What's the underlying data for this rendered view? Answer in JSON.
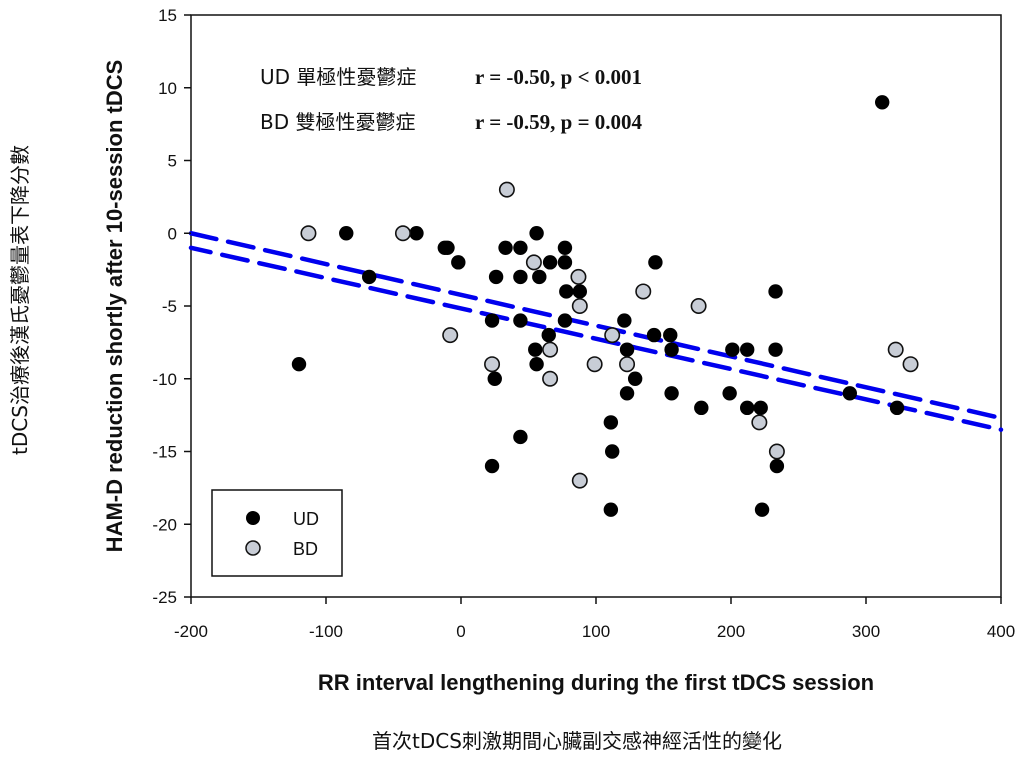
{
  "chart_data": {
    "type": "scatter",
    "title": "",
    "xlabel": "RR interval lengthening during the first tDCS session",
    "xlabel_zh": "首次tDCS刺激期間心臟副交感神經活性的變化",
    "ylabel": "HAM-D reduction shortly after 10-session tDCS",
    "ylabel_zh": "tDCS治療後漢氏憂鬱量表下降分數",
    "xlim": [
      -200,
      400
    ],
    "ylim": [
      -25,
      15
    ],
    "xticks": [
      -200,
      -100,
      0,
      100,
      200,
      300,
      400
    ],
    "yticks": [
      15,
      10,
      5,
      0,
      -5,
      -10,
      -15,
      -20,
      -25
    ],
    "grid": false,
    "legend": {
      "placement": "bottom-left",
      "entries": [
        {
          "name": "UD",
          "color": "#000000"
        },
        {
          "name": "BD",
          "color": "#c8cdd6"
        }
      ]
    },
    "annotations": [
      {
        "label": "UD 單極性憂鬱症",
        "stat": "r = -0.50, p < 0.001"
      },
      {
        "label": "BD 雙極性憂鬱症",
        "stat": "r = -0.59, p = 0.004"
      }
    ],
    "series": [
      {
        "name": "UD",
        "color": "#000000",
        "points": [
          [
            -120,
            -9
          ],
          [
            -85,
            0
          ],
          [
            -68,
            -3
          ],
          [
            -33,
            0
          ],
          [
            -12,
            -1
          ],
          [
            -10,
            -1
          ],
          [
            -2,
            -2
          ],
          [
            23,
            -6
          ],
          [
            23,
            -16
          ],
          [
            25,
            -10
          ],
          [
            26,
            -3
          ],
          [
            33,
            -1
          ],
          [
            44,
            -1
          ],
          [
            44,
            -3
          ],
          [
            44,
            -6
          ],
          [
            44,
            -14
          ],
          [
            55,
            -8
          ],
          [
            56,
            0
          ],
          [
            56,
            -9
          ],
          [
            58,
            -3
          ],
          [
            65,
            -7
          ],
          [
            66,
            -2
          ],
          [
            77,
            -1
          ],
          [
            77,
            -2
          ],
          [
            77,
            -6
          ],
          [
            78,
            -4
          ],
          [
            88,
            -4
          ],
          [
            111,
            -13
          ],
          [
            111,
            -19
          ],
          [
            112,
            -15
          ],
          [
            121,
            -6
          ],
          [
            123,
            -8
          ],
          [
            123,
            -11
          ],
          [
            129,
            -10
          ],
          [
            143,
            -7
          ],
          [
            144,
            -2
          ],
          [
            155,
            -7
          ],
          [
            156,
            -8
          ],
          [
            156,
            -11
          ],
          [
            178,
            -12
          ],
          [
            199,
            -11
          ],
          [
            201,
            -8
          ],
          [
            212,
            -8
          ],
          [
            212,
            -12
          ],
          [
            222,
            -12
          ],
          [
            223,
            -19
          ],
          [
            233,
            -4
          ],
          [
            233,
            -8
          ],
          [
            234,
            -16
          ],
          [
            288,
            -11
          ],
          [
            312,
            9
          ],
          [
            323,
            -12
          ]
        ]
      },
      {
        "name": "BD",
        "color": "#c8cdd6",
        "points": [
          [
            -113,
            0
          ],
          [
            -43,
            0
          ],
          [
            -8,
            -7
          ],
          [
            23,
            -9
          ],
          [
            34,
            3
          ],
          [
            54,
            -2
          ],
          [
            66,
            -8
          ],
          [
            66,
            -10
          ],
          [
            87,
            -3
          ],
          [
            88,
            -5
          ],
          [
            88,
            -17
          ],
          [
            99,
            -9
          ],
          [
            112,
            -7
          ],
          [
            123,
            -9
          ],
          [
            135,
            -4
          ],
          [
            176,
            -5
          ],
          [
            221,
            -13
          ],
          [
            234,
            -15
          ],
          [
            322,
            -8
          ],
          [
            333,
            -9
          ]
        ]
      }
    ],
    "regression_lines": [
      {
        "name": "UD fit",
        "color": "#0000ee",
        "style": "dashed",
        "x": [
          -200,
          400
        ],
        "y": [
          0.0,
          -12.7
        ]
      },
      {
        "name": "BD fit",
        "color": "#0000ee",
        "style": "dashed",
        "x": [
          -200,
          400
        ],
        "y": [
          -1.0,
          -13.5
        ]
      }
    ]
  }
}
